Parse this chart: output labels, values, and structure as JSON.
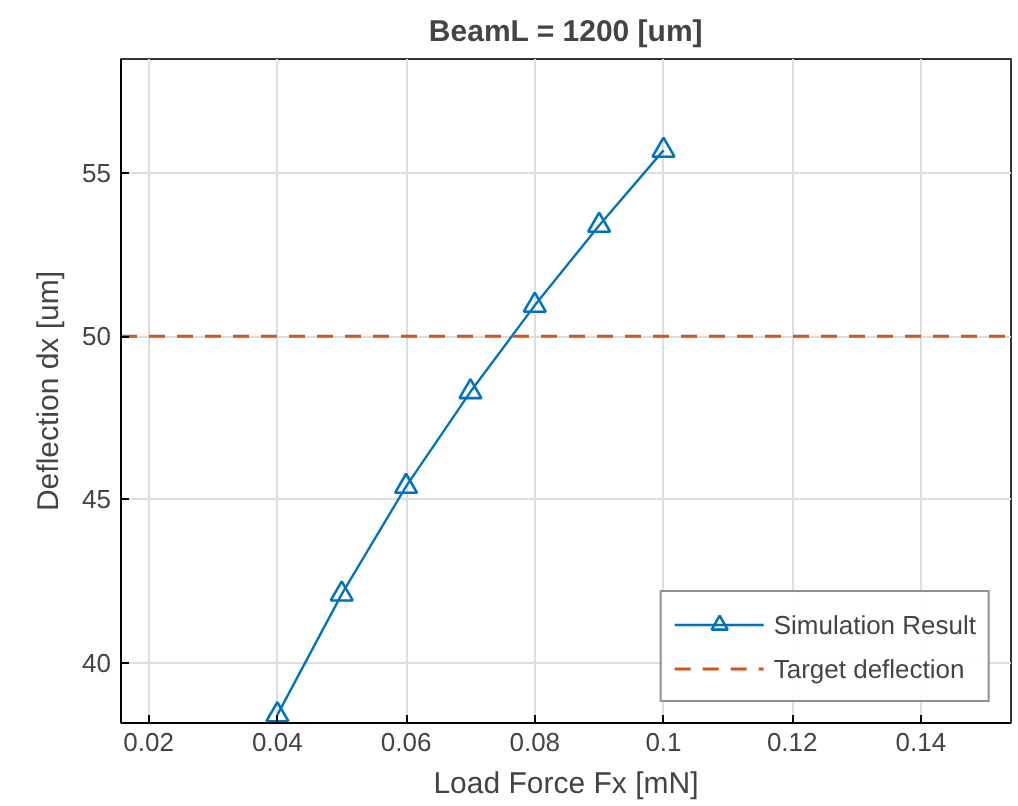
{
  "chart_data": {
    "type": "line",
    "title": "BeamL = 1200 [um]",
    "xlabel": "Load Force Fx [mN]",
    "ylabel": "Deflection dx [um]",
    "x": [
      0.04,
      0.05,
      0.06,
      0.07,
      0.08,
      0.09,
      0.1
    ],
    "series": [
      {
        "name": "Simulation Result",
        "color": "#0072bd",
        "values": [
          38.4,
          42.1,
          45.4,
          48.3,
          50.95,
          53.4,
          55.7
        ]
      }
    ],
    "ref_lines": [
      {
        "axis": "y",
        "value": 50,
        "label": "Target deflection",
        "color": "#d95319",
        "line_style": "dashed"
      }
    ],
    "xlim": [
      0.0157,
      0.154
    ],
    "ylim": [
      38.15,
      58.5
    ],
    "xticks": [
      0.02,
      0.04,
      0.06,
      0.08,
      0.1,
      0.12,
      0.14
    ],
    "yticks": [
      40,
      45,
      50,
      55
    ],
    "grid": true,
    "legend": "bottom right",
    "marker": "triangle",
    "line_style": "solid"
  }
}
